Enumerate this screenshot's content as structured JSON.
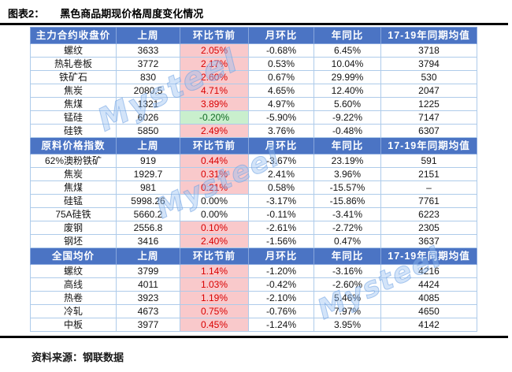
{
  "title": {
    "fig_label": "图表2：",
    "text": "黑色商品期现价格周度变化情况"
  },
  "watermark": "Mysteel",
  "footer": {
    "source": "资料来源：钢联数据"
  },
  "colors": {
    "header_bg": "#4b74c4",
    "highlight_up_bg": "#f9c9cb",
    "highlight_up_text": "#d90000",
    "highlight_down_bg": "#c9efcd",
    "highlight_down_text": "#0f6b22",
    "grid": "#aecbea"
  },
  "columns_tail": [
    "上周",
    "环比节前",
    "月环比",
    "年同比",
    "17-19年同期均值"
  ],
  "sections": [
    {
      "header": "主力合约收盘价",
      "rows": [
        {
          "label": "螺纹",
          "values": [
            "3633",
            "2.05%",
            "-0.68%",
            "6.45%",
            "3718"
          ],
          "wow": "pink"
        },
        {
          "label": "热轧卷板",
          "values": [
            "3772",
            "2.17%",
            "0.53%",
            "10.04%",
            "3794"
          ],
          "wow": "pink"
        },
        {
          "label": "铁矿石",
          "values": [
            "830",
            "2.60%",
            "0.67%",
            "29.99%",
            "530"
          ],
          "wow": "pink"
        },
        {
          "label": "焦炭",
          "values": [
            "2080.5",
            "4.71%",
            "4.65%",
            "12.40%",
            "2047"
          ],
          "wow": "pink"
        },
        {
          "label": "焦煤",
          "values": [
            "1321",
            "3.89%",
            "4.97%",
            "5.60%",
            "1225"
          ],
          "wow": "pink"
        },
        {
          "label": "锰硅",
          "values": [
            "6026",
            "-0.20%",
            "-5.90%",
            "-9.22%",
            "7147"
          ],
          "wow": "green"
        },
        {
          "label": "硅铁",
          "values": [
            "5850",
            "2.49%",
            "3.76%",
            "-0.48%",
            "6307"
          ],
          "wow": "pink"
        }
      ]
    },
    {
      "header": "原料价格指数",
      "rows": [
        {
          "label": "62%澳粉铁矿",
          "values": [
            "919",
            "0.44%",
            "-3.67%",
            "23.19%",
            "591"
          ],
          "wow": "pink"
        },
        {
          "label": "焦炭",
          "values": [
            "1929.7",
            "0.31%",
            "2.41%",
            "3.96%",
            "2151"
          ],
          "wow": "pink"
        },
        {
          "label": "焦煤",
          "values": [
            "981",
            "0.21%",
            "0.58%",
            "-15.57%",
            "–"
          ],
          "wow": "pink"
        },
        {
          "label": "硅锰",
          "values": [
            "5998.26",
            "0.00%",
            "-3.17%",
            "-15.86%",
            "7761"
          ],
          "wow": "none"
        },
        {
          "label": "75A硅铁",
          "values": [
            "5660.2",
            "0.00%",
            "-0.11%",
            "-3.41%",
            "6223"
          ],
          "wow": "none"
        },
        {
          "label": "废钢",
          "values": [
            "2556.8",
            "0.10%",
            "-2.61%",
            "-2.72%",
            "2305"
          ],
          "wow": "pink"
        },
        {
          "label": "钢坯",
          "values": [
            "3416",
            "2.40%",
            "-1.56%",
            "0.47%",
            "3637"
          ],
          "wow": "pink"
        }
      ]
    },
    {
      "header": "全国均价",
      "rows": [
        {
          "label": "螺纹",
          "values": [
            "3799",
            "1.14%",
            "-1.20%",
            "-3.16%",
            "4216"
          ],
          "wow": "pink"
        },
        {
          "label": "高线",
          "values": [
            "4011",
            "1.03%",
            "-0.42%",
            "-2.60%",
            "4424"
          ],
          "wow": "pink"
        },
        {
          "label": "热卷",
          "values": [
            "3923",
            "1.19%",
            "-2.10%",
            "5.46%",
            "4085"
          ],
          "wow": "pink"
        },
        {
          "label": "冷轧",
          "values": [
            "4673",
            "0.75%",
            "-0.76%",
            "7.97%",
            "4650"
          ],
          "wow": "pink"
        },
        {
          "label": "中板",
          "values": [
            "3977",
            "0.45%",
            "-1.24%",
            "3.95%",
            "4142"
          ],
          "wow": "pink"
        }
      ]
    }
  ]
}
